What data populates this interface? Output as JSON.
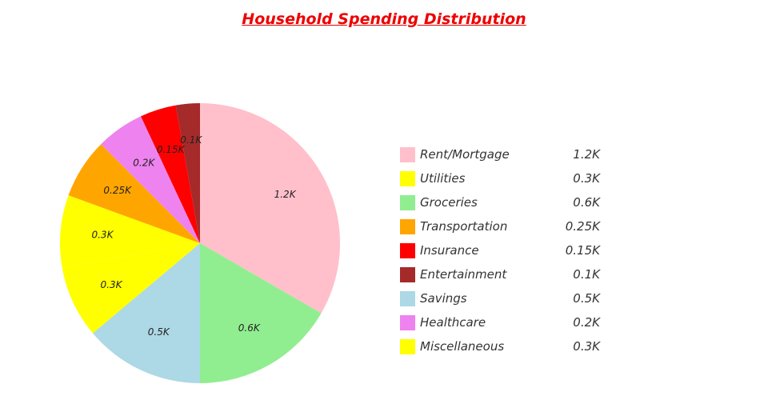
{
  "chart_data": {
    "type": "pie",
    "title": "Household Spending Distribution",
    "legend_position": "right",
    "slices": [
      {
        "label": "Rent/Mortgage",
        "value": 1.2,
        "display": "1.2K",
        "color": "#ffc0cb"
      },
      {
        "label": "Groceries",
        "value": 0.6,
        "display": "0.6K",
        "color": "#90ee90"
      },
      {
        "label": "Savings",
        "value": 0.5,
        "display": "0.5K",
        "color": "#add8e6"
      },
      {
        "label": "Utilities",
        "value": 0.3,
        "display": "0.3K",
        "color": "#ffff00"
      },
      {
        "label": "Miscellaneous",
        "value": 0.3,
        "display": "0.3K",
        "color": "#ffff00"
      },
      {
        "label": "Transportation",
        "value": 0.25,
        "display": "0.25K",
        "color": "#ffa500"
      },
      {
        "label": "Healthcare",
        "value": 0.2,
        "display": "0.2K",
        "color": "#ee82ee"
      },
      {
        "label": "Insurance",
        "value": 0.15,
        "display": "0.15K",
        "color": "#ff0000"
      },
      {
        "label": "Entertainment",
        "value": 0.1,
        "display": "0.1K",
        "color": "#a52a2a"
      }
    ],
    "legend": [
      {
        "label": "Rent/Mortgage",
        "display": "1.2K",
        "color": "#ffc0cb"
      },
      {
        "label": "Utilities",
        "display": "0.3K",
        "color": "#ffff00"
      },
      {
        "label": "Groceries",
        "display": "0.6K",
        "color": "#90ee90"
      },
      {
        "label": "Transportation",
        "display": "0.25K",
        "color": "#ffa500"
      },
      {
        "label": "Insurance",
        "display": "0.15K",
        "color": "#ff0000"
      },
      {
        "label": "Entertainment",
        "display": "0.1K",
        "color": "#a52a2a"
      },
      {
        "label": "Savings",
        "display": "0.5K",
        "color": "#add8e6"
      },
      {
        "label": "Healthcare",
        "display": "0.2K",
        "color": "#ee82ee"
      },
      {
        "label": "Miscellaneous",
        "display": "0.3K",
        "color": "#ffff00"
      }
    ]
  }
}
